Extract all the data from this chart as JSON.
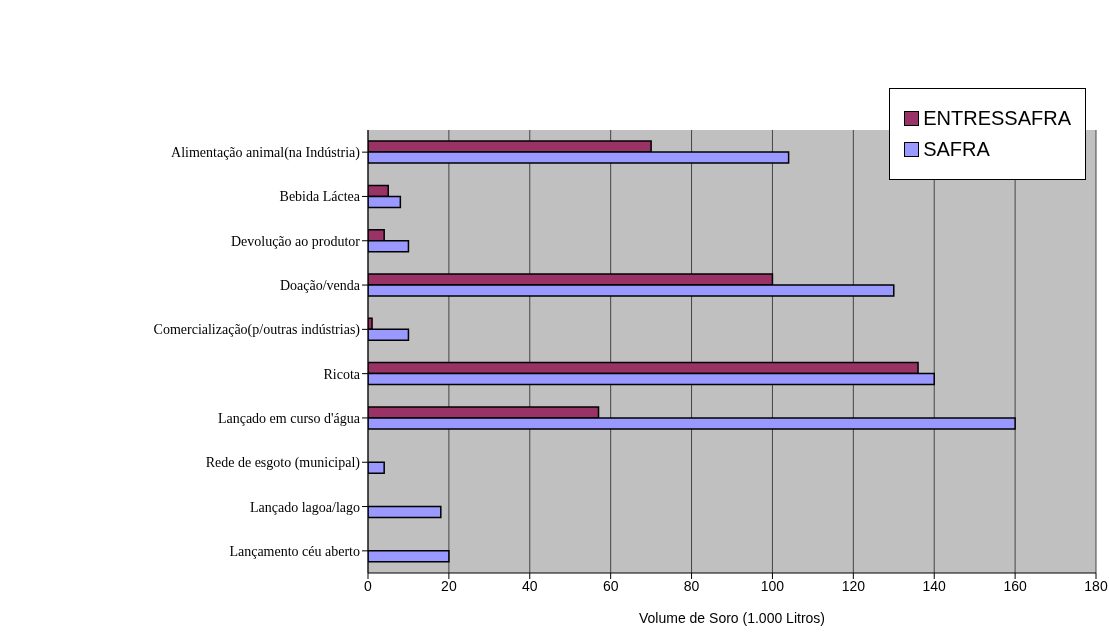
{
  "chart_data": {
    "type": "bar",
    "orientation": "horizontal",
    "xlabel": "Volume de Soro (1.000 Litros)",
    "categories": [
      "Alimentação animal(na Indústria)",
      "Bebida Láctea",
      "Devolução ao produtor",
      "Doação/venda",
      "Comercialização(p/outras indústrias)",
      "Ricota",
      "Lançado em curso d'água",
      "Rede de esgoto (municipal)",
      "Lançado lagoa/lago",
      "Lançamento céu aberto"
    ],
    "series": [
      {
        "name": "ENTRESSAFRA",
        "color": "#993366",
        "values": [
          70,
          5,
          4,
          100,
          1,
          136,
          57,
          null,
          null,
          null
        ]
      },
      {
        "name": "SAFRA",
        "color": "#9999ff",
        "values": [
          104,
          8,
          10,
          130,
          10,
          140,
          160,
          4,
          18,
          20
        ]
      }
    ],
    "xlim": [
      0,
      180
    ],
    "xticks": [
      0,
      20,
      40,
      60,
      80,
      100,
      120,
      140,
      160,
      180
    ],
    "grid": "x",
    "legend": "top right"
  }
}
